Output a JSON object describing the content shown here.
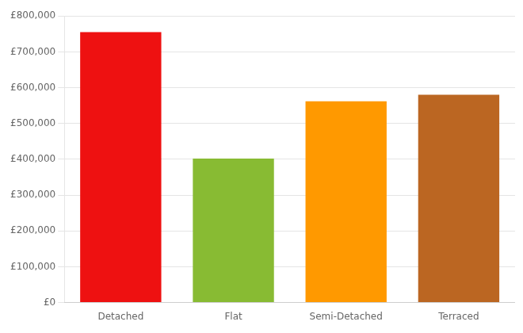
{
  "chart_data": {
    "type": "bar",
    "categories": [
      "Detached",
      "Flat",
      "Semi-Detached",
      "Terraced"
    ],
    "values": [
      755000,
      402000,
      562000,
      580000
    ],
    "colors": [
      "#ee1111",
      "#88bb33",
      "#ff9900",
      "#bb6622"
    ],
    "ylim": [
      0,
      800000
    ],
    "yticks": [
      {
        "value": 0,
        "label": "£0"
      },
      {
        "value": 100000,
        "label": "£100,000"
      },
      {
        "value": 200000,
        "label": "£200,000"
      },
      {
        "value": 300000,
        "label": "£300,000"
      },
      {
        "value": 400000,
        "label": "£400,000"
      },
      {
        "value": 500000,
        "label": "£500,000"
      },
      {
        "value": 600000,
        "label": "£600,000"
      },
      {
        "value": 700000,
        "label": "£700,000"
      },
      {
        "value": 800000,
        "label": "£800,000"
      }
    ],
    "grid": true
  }
}
